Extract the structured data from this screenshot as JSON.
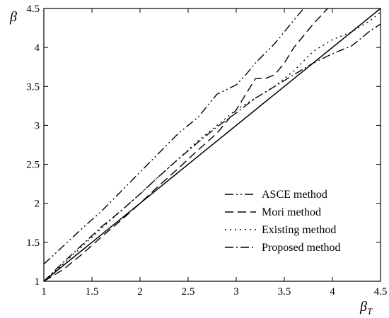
{
  "chart_data": {
    "type": "line",
    "xlabel": "β",
    "xlabel_sub": "T",
    "ylabel": "β",
    "xlim": [
      1,
      4.5
    ],
    "ylim": [
      1,
      4.5
    ],
    "xticks": [
      "1",
      "1.5",
      "2",
      "2.5",
      "3",
      "3.5",
      "4",
      "4.5"
    ],
    "yticks": [
      "1",
      "1.5",
      "2",
      "2.5",
      "3",
      "3.5",
      "4",
      "4.5"
    ],
    "grid": false,
    "legend_position": "bottom-right",
    "reference_line": {
      "style": "solid",
      "x": [
        1,
        4.5
      ],
      "y": [
        1,
        4.5
      ]
    },
    "series": [
      {
        "name": "ASCE method",
        "style": "dash-dot-dot",
        "x": [
          1.0,
          1.2,
          1.4,
          1.6,
          1.8,
          2.0,
          2.2,
          2.4,
          2.6,
          2.8,
          3.0,
          3.1,
          3.2,
          3.4,
          3.6,
          3.7
        ],
        "y": [
          1.22,
          1.45,
          1.68,
          1.9,
          2.15,
          2.4,
          2.65,
          2.9,
          3.1,
          3.4,
          3.52,
          3.65,
          3.8,
          4.05,
          4.35,
          4.5
        ]
      },
      {
        "name": "Mori method",
        "style": "dashed",
        "x": [
          1.0,
          1.2,
          1.4,
          1.6,
          1.8,
          2.0,
          2.2,
          2.4,
          2.6,
          2.8,
          3.0,
          3.1,
          3.2,
          3.3,
          3.4,
          3.5,
          3.6,
          3.8,
          3.95
        ],
        "y": [
          1.0,
          1.15,
          1.35,
          1.57,
          1.78,
          2.0,
          2.23,
          2.45,
          2.68,
          2.9,
          3.2,
          3.4,
          3.6,
          3.6,
          3.65,
          3.8,
          4.0,
          4.3,
          4.5
        ]
      },
      {
        "name": "Existing method",
        "style": "dotted",
        "x": [
          1.0,
          1.2,
          1.4,
          1.6,
          1.8,
          2.0,
          2.2,
          2.4,
          2.6,
          2.8,
          3.0,
          3.2,
          3.4,
          3.6,
          3.8,
          4.0,
          4.2,
          4.4,
          4.5
        ],
        "y": [
          1.0,
          1.22,
          1.45,
          1.68,
          1.9,
          2.12,
          2.35,
          2.57,
          2.8,
          3.0,
          3.2,
          3.35,
          3.5,
          3.7,
          3.95,
          4.1,
          4.2,
          4.35,
          4.45
        ]
      },
      {
        "name": "Proposed method",
        "style": "dash-dot",
        "x": [
          1.0,
          1.2,
          1.4,
          1.6,
          1.8,
          2.0,
          2.2,
          2.4,
          2.6,
          2.8,
          3.0,
          3.2,
          3.4,
          3.6,
          3.8,
          4.0,
          4.2,
          4.4,
          4.5
        ],
        "y": [
          1.0,
          1.24,
          1.47,
          1.7,
          1.9,
          2.12,
          2.35,
          2.57,
          2.78,
          2.98,
          3.16,
          3.35,
          3.5,
          3.65,
          3.8,
          3.92,
          4.02,
          4.22,
          4.3
        ]
      }
    ]
  }
}
